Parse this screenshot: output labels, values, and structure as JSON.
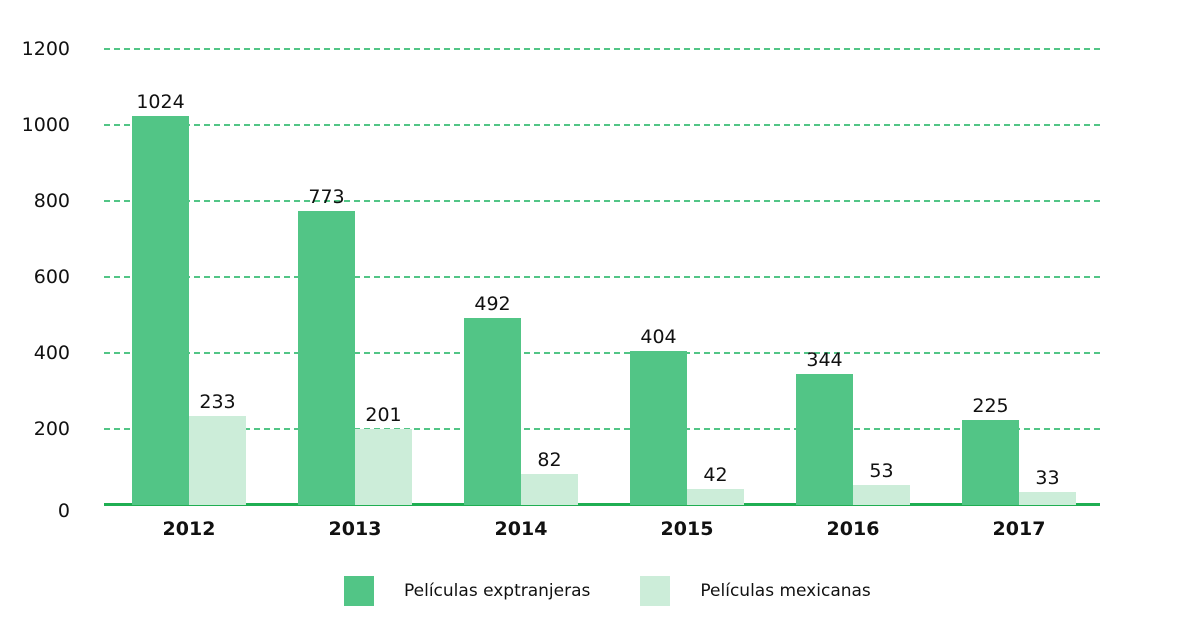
{
  "chart_data": {
    "type": "bar",
    "title": "",
    "xlabel": "",
    "ylabel": "",
    "categories": [
      "2012",
      "2013",
      "2014",
      "2015",
      "2016",
      "2017"
    ],
    "series": [
      {
        "name": "Películas exptranjeras",
        "color": "#52c586",
        "values": [
          1024,
          773,
          492,
          404,
          344,
          225
        ]
      },
      {
        "name": "Películas mexicanas",
        "color": "#ccedd9",
        "values": [
          233,
          201,
          82,
          42,
          53,
          33
        ]
      }
    ],
    "ylim": [
      0,
      1200
    ],
    "yticks": [
      0,
      200,
      400,
      600,
      800,
      1000,
      1200
    ],
    "grid": true,
    "grid_style": "dashed",
    "grid_color": "#52c586",
    "axis_color": "#1fae52",
    "legend_position": "bottom"
  }
}
